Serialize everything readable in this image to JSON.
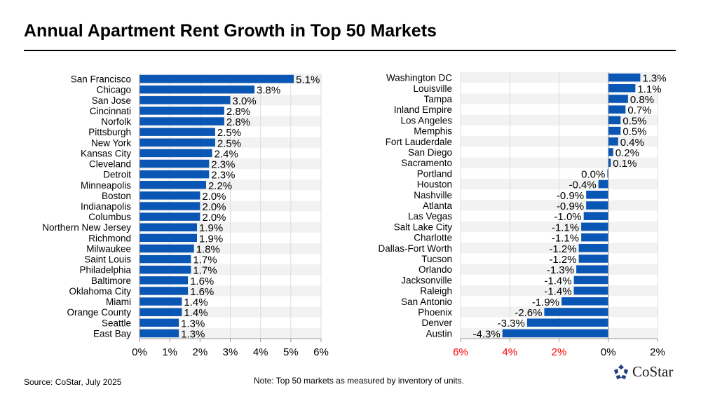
{
  "title": "Annual Apartment Rent Growth in Top 50 Markets",
  "source": "Source: CoStar, July 2025",
  "note": "Note: Top 50 markets as measured by inventory of units.",
  "logo": "CoStar",
  "colors": {
    "bar": "#0a56b4",
    "stripe": "#f2f2f2",
    "negative_tick": "#ff0000"
  },
  "chart_data": [
    {
      "type": "bar",
      "orientation": "horizontal",
      "xlim": [
        0,
        6
      ],
      "tick_labels": [
        "0%",
        "1%",
        "2%",
        "3%",
        "4%",
        "5%",
        "6%"
      ],
      "categories": [
        "San Francisco",
        "Chicago",
        "San Jose",
        "Cincinnati",
        "Norfolk",
        "Pittsburgh",
        "New York",
        "Kansas City",
        "Cleveland",
        "Detroit",
        "Minneapolis",
        "Boston",
        "Indianapolis",
        "Columbus",
        "Northern New Jersey",
        "Richmond",
        "Milwaukee",
        "Saint Louis",
        "Philadelphia",
        "Baltimore",
        "Oklahoma City",
        "Miami",
        "Orange County",
        "Seattle",
        "East Bay"
      ],
      "values": [
        5.1,
        3.8,
        3.0,
        2.8,
        2.8,
        2.5,
        2.5,
        2.4,
        2.3,
        2.3,
        2.2,
        2.0,
        2.0,
        2.0,
        1.9,
        1.9,
        1.8,
        1.7,
        1.7,
        1.6,
        1.6,
        1.4,
        1.4,
        1.3,
        1.3
      ],
      "data_labels": [
        "5.1%",
        "3.8%",
        "3.0%",
        "2.8%",
        "2.8%",
        "2.5%",
        "2.5%",
        "2.4%",
        "2.3%",
        "2.3%",
        "2.2%",
        "2.0%",
        "2.0%",
        "2.0%",
        "1.9%",
        "1.9%",
        "1.8%",
        "1.7%",
        "1.7%",
        "1.6%",
        "1.6%",
        "1.4%",
        "1.4%",
        "1.3%",
        "1.3%"
      ],
      "grid": true
    },
    {
      "type": "bar",
      "orientation": "horizontal",
      "xlim": [
        -6,
        2
      ],
      "tick_labels": [
        "6%",
        "4%",
        "2%",
        "0%",
        "2%"
      ],
      "tick_values": [
        -6,
        -4,
        -2,
        0,
        2
      ],
      "categories": [
        "Washington DC",
        "Louisville",
        "Tampa",
        "Inland Empire",
        "Los Angeles",
        "Memphis",
        "Fort Lauderdale",
        "San Diego",
        "Sacramento",
        "Portland",
        "Houston",
        "Nashville",
        "Atlanta",
        "Las Vegas",
        "Salt Lake City",
        "Charlotte",
        "Dallas-Fort Worth",
        "Tucson",
        "Orlando",
        "Jacksonville",
        "Raleigh",
        "San Antonio",
        "Phoenix",
        "Denver",
        "Austin"
      ],
      "values": [
        1.3,
        1.1,
        0.8,
        0.7,
        0.5,
        0.5,
        0.4,
        0.2,
        0.1,
        -0.04,
        -0.4,
        -0.9,
        -0.9,
        -1.0,
        -1.1,
        -1.1,
        -1.2,
        -1.2,
        -1.3,
        -1.4,
        -1.4,
        -1.9,
        -2.6,
        -3.3,
        -4.3
      ],
      "data_labels": [
        "1.3%",
        "1.1%",
        "0.8%",
        "0.7%",
        "0.5%",
        "0.5%",
        "0.4%",
        "0.2%",
        "0.1%",
        "0.0%",
        "-0.4%",
        "-0.9%",
        "-0.9%",
        "-1.0%",
        "-1.1%",
        "-1.1%",
        "-1.2%",
        "-1.2%",
        "-1.3%",
        "-1.4%",
        "-1.4%",
        "-1.9%",
        "-2.6%",
        "-3.3%",
        "-4.3%"
      ],
      "grid": true
    }
  ]
}
